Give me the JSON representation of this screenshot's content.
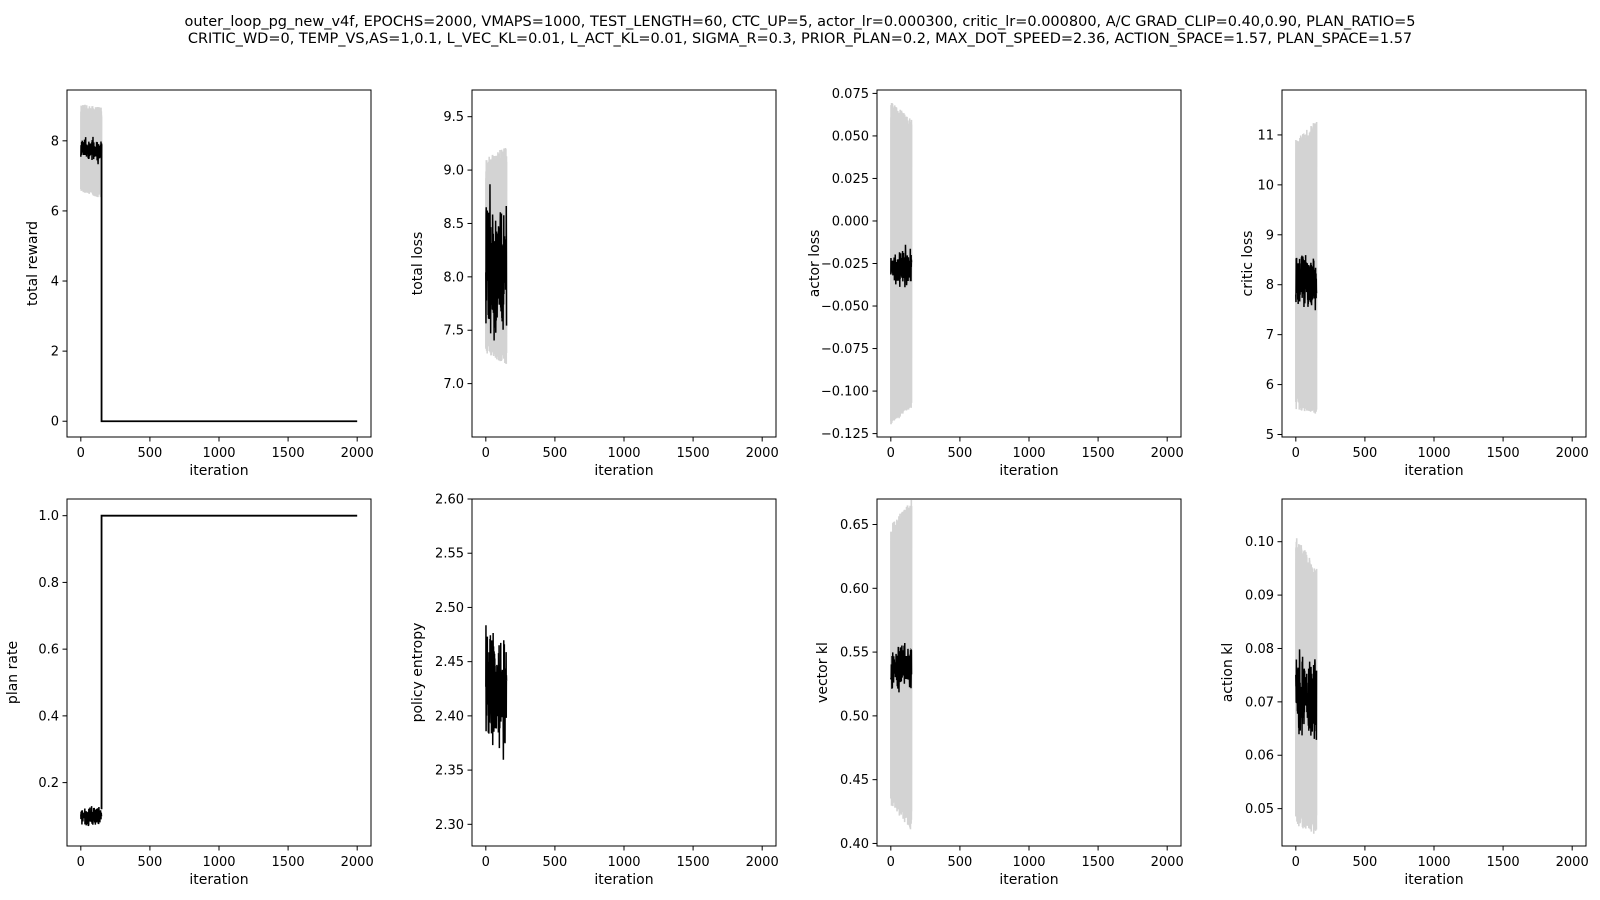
{
  "figure": {
    "title_line1": "outer_loop_pg_new_v4f, EPOCHS=2000, VMAPS=1000, TEST_LENGTH=60, CTC_UP=5, actor_lr=0.000300, critic_lr=0.000800, A/C GRAD_CLIP=0.40,0.90, PLAN_RATIO=5",
    "title_line2": "CRITIC_WD=0, TEMP_VS,AS=1,0.1, L_VEC_KL=0.01, L_ACT_KL=0.01, SIGMA_R=0.3, PRIOR_PLAN=0.2, MAX_DOT_SPEED=2.36, ACTION_SPACE=1.57, PLAN_SPACE=1.57"
  },
  "colors": {
    "mean_line": "#000000",
    "band": "#d3d3d3"
  },
  "chart_data": [
    {
      "type": "line",
      "id": "total-reward",
      "xlabel": "iteration",
      "ylabel": "total reward",
      "xlim": [
        -100,
        2100
      ],
      "ylim": [
        -0.45,
        9.45
      ],
      "xticks": [
        0,
        500,
        1000,
        1500,
        2000
      ],
      "yticks": [
        0,
        2,
        4,
        6,
        8
      ],
      "tick_decimals": 0,
      "series": [
        {
          "role": "band",
          "x": [
            0,
            150
          ],
          "low": [
            6.7,
            6.5
          ],
          "high": [
            8.9,
            8.8
          ],
          "noise": 0.15,
          "seed": 11
        },
        {
          "role": "mean",
          "x": [
            0,
            150
          ],
          "y": [
            7.8,
            7.7
          ],
          "noise": 0.35,
          "seed": 12
        },
        {
          "role": "mean",
          "x": [
            150,
            150,
            2000
          ],
          "y": [
            7.9,
            0,
            0
          ]
        }
      ]
    },
    {
      "type": "line",
      "id": "total-loss",
      "xlabel": "iteration",
      "ylabel": "total loss",
      "xlim": [
        -100,
        2100
      ],
      "ylim": [
        6.5,
        9.75
      ],
      "xticks": [
        0,
        500,
        1000,
        1500,
        2000
      ],
      "yticks": [
        7.0,
        7.5,
        8.0,
        8.5,
        9.0,
        9.5
      ],
      "tick_decimals": 1,
      "series": [
        {
          "role": "band",
          "x": [
            0,
            150
          ],
          "low": [
            7.4,
            7.3
          ],
          "high": [
            9.0,
            9.1
          ],
          "noise": 0.12,
          "seed": 21
        },
        {
          "role": "mean",
          "x": [
            0,
            150
          ],
          "y": [
            8.1,
            8.1
          ],
          "noise": 0.7,
          "seed": 22
        }
      ]
    },
    {
      "type": "line",
      "id": "actor-loss",
      "xlabel": "iteration",
      "ylabel": "actor loss",
      "xlim": [
        -100,
        2100
      ],
      "ylim": [
        -0.127,
        0.077
      ],
      "xticks": [
        0,
        500,
        1000,
        1500,
        2000
      ],
      "yticks": [
        -0.125,
        -0.1,
        -0.075,
        -0.05,
        -0.025,
        0.0,
        0.025,
        0.05,
        0.075
      ],
      "tick_decimals": 3,
      "series": [
        {
          "role": "band",
          "x": [
            0,
            150
          ],
          "low": [
            -0.115,
            -0.105
          ],
          "high": [
            0.065,
            0.055
          ],
          "noise": 0.005,
          "seed": 31
        },
        {
          "role": "mean",
          "x": [
            0,
            150
          ],
          "y": [
            -0.028,
            -0.028
          ],
          "noise": 0.012,
          "seed": 32
        }
      ]
    },
    {
      "type": "line",
      "id": "critic-loss",
      "xlabel": "iteration",
      "ylabel": "critic loss",
      "xlim": [
        -100,
        2100
      ],
      "ylim": [
        4.95,
        11.9
      ],
      "xticks": [
        0,
        500,
        1000,
        1500,
        2000
      ],
      "yticks": [
        5,
        6,
        7,
        8,
        9,
        10,
        11
      ],
      "tick_decimals": 0,
      "series": [
        {
          "role": "band",
          "x": [
            0,
            150
          ],
          "low": [
            5.8,
            5.7
          ],
          "high": [
            10.6,
            11.0
          ],
          "noise": 0.3,
          "seed": 41
        },
        {
          "role": "mean",
          "x": [
            0,
            150
          ],
          "y": [
            8.1,
            8.0
          ],
          "noise": 0.6,
          "seed": 42
        }
      ]
    },
    {
      "type": "line",
      "id": "plan-rate",
      "xlabel": "iteration",
      "ylabel": "plan rate",
      "xlim": [
        -100,
        2100
      ],
      "ylim": [
        0.01,
        1.05
      ],
      "xticks": [
        0,
        500,
        1000,
        1500,
        2000
      ],
      "yticks": [
        0.2,
        0.4,
        0.6,
        0.8,
        1.0
      ],
      "tick_decimals": 1,
      "series": [
        {
          "role": "mean",
          "x": [
            0,
            150
          ],
          "y": [
            0.1,
            0.1
          ],
          "noise": 0.03,
          "seed": 52
        },
        {
          "role": "mean",
          "x": [
            150,
            150,
            2000
          ],
          "y": [
            0.12,
            1.0,
            1.0
          ]
        }
      ]
    },
    {
      "type": "line",
      "id": "policy-entropy",
      "xlabel": "iteration",
      "ylabel": "policy entropy",
      "xlim": [
        -100,
        2100
      ],
      "ylim": [
        2.28,
        2.6
      ],
      "xticks": [
        0,
        500,
        1000,
        1500,
        2000
      ],
      "yticks": [
        2.3,
        2.35,
        2.4,
        2.45,
        2.5,
        2.55,
        2.6
      ],
      "tick_decimals": 2,
      "series": [
        {
          "role": "mean",
          "x": [
            0,
            150
          ],
          "y": [
            2.43,
            2.42
          ],
          "noise": 0.055,
          "seed": 62
        }
      ]
    },
    {
      "type": "line",
      "id": "vector-kl",
      "xlabel": "iteration",
      "ylabel": "vector kl",
      "xlim": [
        -100,
        2100
      ],
      "ylim": [
        0.398,
        0.67
      ],
      "xticks": [
        0,
        500,
        1000,
        1500,
        2000
      ],
      "yticks": [
        0.4,
        0.45,
        0.5,
        0.55,
        0.6,
        0.65
      ],
      "tick_decimals": 2,
      "series": [
        {
          "role": "band",
          "x": [
            0,
            150
          ],
          "low": [
            0.44,
            0.42
          ],
          "high": [
            0.64,
            0.66
          ],
          "noise": 0.01,
          "seed": 71
        },
        {
          "role": "mean",
          "x": [
            0,
            150
          ],
          "y": [
            0.535,
            0.54
          ],
          "noise": 0.02,
          "seed": 72
        }
      ]
    },
    {
      "type": "line",
      "id": "action-kl",
      "xlabel": "iteration",
      "ylabel": "action kl",
      "xlim": [
        -100,
        2100
      ],
      "ylim": [
        0.043,
        0.108
      ],
      "xticks": [
        0,
        500,
        1000,
        1500,
        2000
      ],
      "yticks": [
        0.05,
        0.06,
        0.07,
        0.08,
        0.09,
        0.1
      ],
      "tick_decimals": 2,
      "series": [
        {
          "role": "band",
          "x": [
            0,
            150
          ],
          "low": [
            0.05,
            0.048
          ],
          "high": [
            0.098,
            0.092
          ],
          "noise": 0.003,
          "seed": 81
        },
        {
          "role": "mean",
          "x": [
            0,
            150
          ],
          "y": [
            0.072,
            0.07
          ],
          "noise": 0.008,
          "seed": 82
        }
      ]
    }
  ]
}
